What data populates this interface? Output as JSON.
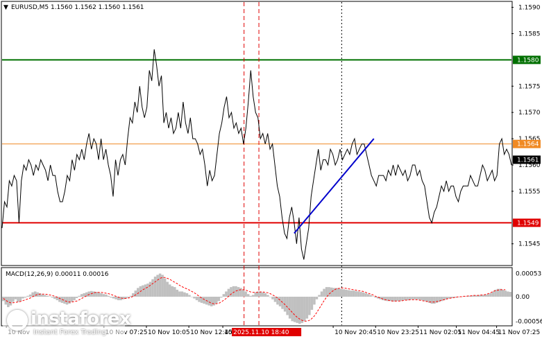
{
  "chart_data": {
    "type": "line",
    "symbol_header": "EURUSD,M5  1.1560 1.1562 1.1560 1.1561",
    "price_axis": {
      "ylim": [
        1.1541,
        1.1591
      ],
      "ticks": [
        {
          "value": 1.159,
          "label": "1.1590"
        },
        {
          "value": 1.1585,
          "label": "1.1585"
        },
        {
          "value": 1.1575,
          "label": "1.1575"
        },
        {
          "value": 1.157,
          "label": "1.1570"
        },
        {
          "value": 1.1565,
          "label": "1.1565"
        },
        {
          "value": 1.156,
          "label": "1.1560"
        },
        {
          "value": 1.1555,
          "label": "1.1555"
        },
        {
          "value": 1.1545,
          "label": "1.1545"
        }
      ]
    },
    "levels": [
      {
        "value": 1.158,
        "label": "1.1580",
        "color": "#007000"
      },
      {
        "value": 1.1564,
        "label": "1.1564",
        "color": "#f08a24"
      },
      {
        "value": 1.1549,
        "label": "1.1549",
        "color": "#e00000"
      }
    ],
    "current_price": {
      "value": 1.1561,
      "label": "1.1561"
    },
    "time_axis": {
      "range": [
        0,
        220
      ],
      "labels": [
        {
          "t": 2,
          "text": "10 Nov"
        },
        {
          "t": 48,
          "text": "10 Nov 07:25"
        },
        {
          "t": 68,
          "text": "10 Nov 10:05"
        },
        {
          "t": 88,
          "text": "10 Nov 12:45"
        },
        {
          "t": 104,
          "text": "10 N"
        },
        {
          "t": 156,
          "text": "10 Nov 20:45"
        },
        {
          "t": 176,
          "text": "10 Nov 23:25"
        },
        {
          "t": 196,
          "text": "11 Nov 02:05"
        },
        {
          "t": 214,
          "text": "11 Nov 04:45"
        },
        {
          "t": 233,
          "text": "11 Nov 07:25"
        }
      ],
      "highlight": {
        "t": 122,
        "text": "2025.11.10 18:40"
      }
    },
    "vertical_markers": [
      {
        "t": 114,
        "style": "red-dashed"
      },
      {
        "t": 121,
        "style": "red-dashed"
      },
      {
        "t": 160,
        "style": "black-dotted"
      }
    ],
    "series": [
      {
        "values": [
          1.1548,
          1.1553,
          1.1552,
          1.1557,
          1.1556,
          1.1558,
          1.1557,
          1.1549,
          1.1557,
          1.156,
          1.1559,
          1.1561,
          1.156,
          1.1558,
          1.156,
          1.1559,
          1.1561,
          1.156,
          1.1559,
          1.1557,
          1.156,
          1.1558,
          1.1558,
          1.1555,
          1.1553,
          1.1553,
          1.1555,
          1.1558,
          1.1557,
          1.1561,
          1.1559,
          1.1562,
          1.1561,
          1.1563,
          1.1561,
          1.1564,
          1.1566,
          1.1563,
          1.1565,
          1.1564,
          1.1561,
          1.1565,
          1.1561,
          1.1563,
          1.156,
          1.1558,
          1.1554,
          1.1561,
          1.1558,
          1.1561,
          1.1562,
          1.156,
          1.1565,
          1.1569,
          1.1568,
          1.1572,
          1.157,
          1.1575,
          1.1571,
          1.1569,
          1.1571,
          1.1578,
          1.1576,
          1.1582,
          1.1579,
          1.1575,
          1.1577,
          1.1568,
          1.157,
          1.1567,
          1.1569,
          1.1566,
          1.1567,
          1.157,
          1.1567,
          1.1572,
          1.1568,
          1.1566,
          1.1569,
          1.1565,
          1.1565,
          1.1564,
          1.1562,
          1.1563,
          1.156,
          1.1556,
          1.1559,
          1.1557,
          1.1558,
          1.1562,
          1.1566,
          1.1568,
          1.1571,
          1.1573,
          1.1569,
          1.157,
          1.1567,
          1.1568,
          1.1566,
          1.1567,
          1.1564,
          1.1567,
          1.1572,
          1.1578,
          1.1573,
          1.157,
          1.1569,
          1.1565,
          1.1566,
          1.1564,
          1.1566,
          1.1563,
          1.1564,
          1.156,
          1.1556,
          1.1554,
          1.155,
          1.1547,
          1.1546,
          1.155,
          1.1552,
          1.1549,
          1.1545,
          1.155,
          1.1544,
          1.1542,
          1.1545,
          1.1548,
          1.1554,
          1.1557,
          1.156,
          1.1563,
          1.1559,
          1.1561,
          1.1561,
          1.156,
          1.1563,
          1.1562,
          1.156,
          1.1561,
          1.1563,
          1.1561,
          1.1562,
          1.1563,
          1.1562,
          1.1564,
          1.1565,
          1.1562,
          1.1563,
          1.1564,
          1.1564,
          1.1562,
          1.156,
          1.1558,
          1.1557,
          1.1556,
          1.1558,
          1.1558,
          1.1558,
          1.1557,
          1.1559,
          1.1558,
          1.156,
          1.1558,
          1.156,
          1.1559,
          1.1558,
          1.1559,
          1.1557,
          1.1558,
          1.156,
          1.156,
          1.1558,
          1.1559,
          1.1557,
          1.1556,
          1.1553,
          1.155,
          1.1549,
          1.1551,
          1.1552,
          1.1554,
          1.1556,
          1.1555,
          1.1557,
          1.1555,
          1.1556,
          1.1556,
          1.1554,
          1.1553,
          1.1555,
          1.1556,
          1.1556,
          1.1556,
          1.1558,
          1.1557,
          1.1556,
          1.1556,
          1.1558,
          1.156,
          1.1559,
          1.1557,
          1.1558,
          1.1559,
          1.1557,
          1.1558,
          1.1564,
          1.1565,
          1.1562,
          1.1563,
          1.1562,
          1.156
        ]
      }
    ],
    "trend_line": {
      "t1": 121,
      "v1": 1.1547,
      "t2": 154,
      "v2": 1.1565,
      "color": "#0000cc"
    },
    "macd": {
      "header": "MACD(12,26,9) 0.00011 0.00016",
      "ylim": [
        -0.00065,
        0.00065
      ],
      "ticks": [
        {
          "value": 0.00053,
          "label": "0.00053"
        },
        {
          "value": 0.0,
          "label": "0.00"
        },
        {
          "value": -0.00056,
          "label": "-0.00056"
        }
      ],
      "histogram": [
        -0.0001,
        -0.00018,
        -0.00024,
        -0.0002,
        -0.00012,
        -6e-05,
        -0.00012,
        -0.0001,
        -4e-05,
        -2e-05,
        2e-05,
        5e-05,
        0.0001,
        0.00012,
        0.0001,
        8e-05,
        5e-05,
        4e-05,
        2e-05,
        1e-05,
        -2e-05,
        -5e-05,
        -8e-05,
        -0.00012,
        -0.00014,
        -0.00016,
        -0.00018,
        -0.00016,
        -0.00012,
        -8e-05,
        -3e-05,
        2e-05,
        6e-05,
        8e-05,
        0.0001,
        0.00012,
        0.00013,
        0.00012,
        0.00011,
        0.0001,
        8e-05,
        6e-05,
        5e-05,
        2e-05,
        -2e-05,
        -4e-05,
        -6e-05,
        -8e-05,
        -8e-05,
        -6e-05,
        -4e-05,
        -2e-05,
        2e-05,
        8e-05,
        0.00014,
        0.0002,
        0.00024,
        0.00026,
        0.00028,
        0.0003,
        0.00034,
        0.0004,
        0.00046,
        0.0005,
        0.00053,
        0.0005,
        0.00042,
        0.00034,
        0.00028,
        0.00024,
        0.00022,
        0.00016,
        0.00012,
        0.00012,
        0.0001,
        8e-05,
        4e-05,
        0.0,
        -4e-05,
        -8e-05,
        -0.00012,
        -0.00014,
        -0.00016,
        -0.00018,
        -0.0002,
        -0.00022,
        -0.0002,
        -0.00016,
        -0.0001,
        -2e-05,
        6e-05,
        0.00012,
        0.00018,
        0.00022,
        0.00024,
        0.00024,
        0.00022,
        0.0002,
        0.00016,
        0.00012,
        6e-05,
        2e-05,
        4e-05,
        0.0001,
        0.00012,
        0.00012,
        0.0001,
        8e-05,
        4e-05,
        0.0,
        -6e-05,
        -0.00012,
        -0.00018,
        -0.00022,
        -0.00028,
        -0.00034,
        -0.00042,
        -0.0005,
        -0.00056,
        -0.00058,
        -0.0006,
        -0.00062,
        -0.0006,
        -0.00056,
        -0.0005,
        -0.00042,
        -0.0003,
        -0.00018,
        -6e-05,
        4e-05,
        0.00012,
        0.00018,
        0.00022,
        0.00022,
        0.00021,
        0.0002,
        0.0002,
        0.00019,
        0.00018,
        0.00017,
        0.00016,
        0.00015,
        0.00014,
        0.00014,
        0.00013,
        0.00012,
        0.00011,
        0.0001,
        8e-05,
        6e-05,
        4e-05,
        1e-05,
        -2e-05,
        -4e-05,
        -6e-05,
        -8e-05,
        -9e-05,
        -0.0001,
        -0.0001,
        -0.00011,
        -0.00011,
        -0.0001,
        -0.0001,
        -9e-05,
        -8e-05,
        -8e-05,
        -7e-05,
        -6e-05,
        -6e-05,
        -6e-05,
        -7e-05,
        -8e-05,
        -0.0001,
        -0.00012,
        -0.00014,
        -0.00016,
        -0.00016,
        -0.00014,
        -0.00012,
        -0.0001,
        -8e-05,
        -6e-05,
        -4e-05,
        -3e-05,
        -2e-05,
        -2e-05,
        -1e-05,
        0.0,
        1e-05,
        1e-05,
        2e-05,
        2e-05,
        3e-05,
        3e-05,
        4e-05,
        4e-05,
        4e-05,
        5e-05,
        6e-05,
        8e-05,
        0.00012,
        0.00016,
        0.00018,
        0.00018,
        0.00016,
        0.00014,
        0.00012,
        0.00011
      ],
      "signal": [
        -4e-05,
        -8e-05,
        -0.00012,
        -0.00014,
        -0.00014,
        -0.00013,
        -0.00012,
        -0.00011,
        -9e-05,
        -7e-05,
        -5e-05,
        -3e-05,
        0.0,
        3e-05,
        5e-05,
        6e-05,
        6e-05,
        6e-05,
        5e-05,
        4e-05,
        3e-05,
        1e-05,
        -1e-05,
        -4e-05,
        -6e-05,
        -9e-05,
        -0.00011,
        -0.00012,
        -0.00012,
        -0.00011,
        -0.0001,
        -7e-05,
        -4e-05,
        -1e-05,
        2e-05,
        5e-05,
        7e-05,
        9e-05,
        0.0001,
        0.0001,
        0.0001,
        9e-05,
        8e-05,
        7e-05,
        5e-05,
        3e-05,
        1e-05,
        -1e-05,
        -3e-05,
        -4e-05,
        -4e-05,
        -3e-05,
        -2e-05,
        1e-05,
        4e-05,
        8e-05,
        0.00012,
        0.00016,
        0.00019,
        0.00022,
        0.00026,
        0.0003,
        0.00034,
        0.00038,
        0.00042,
        0.00044,
        0.00044,
        0.00042,
        0.0004,
        0.00036,
        0.00033,
        0.0003,
        0.00026,
        0.00023,
        0.0002,
        0.00018,
        0.00015,
        0.00012,
        9e-05,
        5e-05,
        1e-05,
        -3e-05,
        -6e-05,
        -9e-05,
        -0.00012,
        -0.00015,
        -0.00016,
        -0.00016,
        -0.00015,
        -0.00012,
        -8e-05,
        -4e-05,
        1e-05,
        6e-05,
        0.0001,
        0.00013,
        0.00015,
        0.00016,
        0.00016,
        0.00015,
        0.00013,
        0.00011,
        0.0001,
        0.0001,
        0.0001,
        0.00011,
        0.00011,
        0.0001,
        9e-05,
        7e-05,
        4e-05,
        1e-05,
        -3e-05,
        -8e-05,
        -0.00013,
        -0.00018,
        -0.00024,
        -0.0003,
        -0.00036,
        -0.00042,
        -0.00047,
        -0.00051,
        -0.00054,
        -0.00056,
        -0.00056,
        -0.00054,
        -0.0005,
        -0.00044,
        -0.00036,
        -0.00027,
        -0.00018,
        -9e-05,
        -1e-05,
        6e-05,
        0.00011,
        0.00015,
        0.00018,
        0.00019,
        0.0002,
        0.0002,
        0.00019,
        0.00018,
        0.00017,
        0.00016,
        0.00015,
        0.00014,
        0.00013,
        0.00012,
        0.0001,
        8e-05,
        6e-05,
        4e-05,
        1e-05,
        -1e-05,
        -3e-05,
        -5e-05,
        -7e-05,
        -8e-05,
        -9e-05,
        -0.0001,
        -0.0001,
        -0.0001,
        -0.0001,
        -9e-05,
        -8e-05,
        -8e-05,
        -7e-05,
        -7e-05,
        -7e-05,
        -7e-05,
        -8e-05,
        -9e-05,
        -0.0001,
        -0.00011,
        -0.00012,
        -0.00012,
        -0.00012,
        -0.00011,
        -0.0001,
        -8e-05,
        -7e-05,
        -5e-05,
        -4e-05,
        -3e-05,
        -2e-05,
        -1e-05,
        0.0,
        0.0,
        1e-05,
        1e-05,
        2e-05,
        2e-05,
        3e-05,
        3e-05,
        3e-05,
        4e-05,
        4e-05,
        5e-05,
        7e-05,
        9e-05,
        0.00012,
        0.00014,
        0.00015,
        0.00016,
        0.00016,
        0.00016
      ]
    }
  },
  "logo": {
    "brand": "instaforex",
    "tagline": "Instant Forex Trading"
  },
  "colors": {
    "price_line": "#000000",
    "macd_hist": "#c0c0c0",
    "macd_signal": "#ff0000",
    "grid": "#000000"
  }
}
